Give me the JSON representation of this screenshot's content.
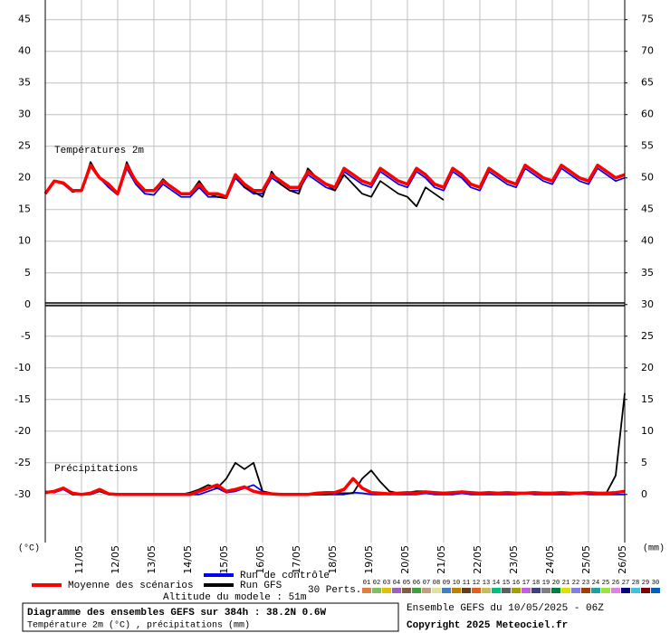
{
  "chart_data": {
    "type": "line",
    "title": "Diagramme des ensembles GEFS sur 384h : 38.2N 0.6W",
    "subtitle": "Température 2m (°C) , précipitations (mm)",
    "run_label": "Ensemble GEFS du 10/05/2025 - 06Z",
    "copyright": "Copyright 2025 Meteociel.fr",
    "altitude_label": "Altitude du modele : 51m",
    "perts_label": "30 Perts.",
    "temp_label": "Températures 2m",
    "precip_label": "Précipitations",
    "ylabel": "(°C)",
    "y2label": "(mm)",
    "grid": true,
    "xlim": [
      0,
      384
    ],
    "xticks": [
      {
        "value": 24,
        "label": "11/05"
      },
      {
        "value": 48,
        "label": "12/05"
      },
      {
        "value": 72,
        "label": "13/05"
      },
      {
        "value": 96,
        "label": "14/05"
      },
      {
        "value": 120,
        "label": "15/05"
      },
      {
        "value": 144,
        "label": "16/05"
      },
      {
        "value": 168,
        "label": "17/05"
      },
      {
        "value": 192,
        "label": "18/05"
      },
      {
        "value": 216,
        "label": "19/05"
      },
      {
        "value": 240,
        "label": "20/05"
      },
      {
        "value": 264,
        "label": "21/05"
      },
      {
        "value": 288,
        "label": "22/05"
      },
      {
        "value": 312,
        "label": "23/05"
      },
      {
        "value": 336,
        "label": "24/05"
      },
      {
        "value": 360,
        "label": "25/05"
      },
      {
        "value": 384,
        "label": "26/05"
      }
    ],
    "ylim": [
      -37.6,
      48.1
    ],
    "yticks": [
      -30,
      -25,
      -20,
      -15,
      -10,
      -5,
      0,
      5,
      10,
      15,
      20,
      25,
      30,
      35,
      40,
      45
    ],
    "y2lim": [
      -7.6,
      78.1
    ],
    "y2ticks": [
      0,
      5,
      10,
      15,
      20,
      25,
      30,
      35,
      40,
      45,
      50,
      55,
      60,
      65,
      70,
      75
    ],
    "x": [
      0,
      6,
      12,
      18,
      24,
      30,
      36,
      42,
      48,
      54,
      60,
      66,
      72,
      78,
      84,
      90,
      96,
      102,
      108,
      114,
      120,
      126,
      132,
      138,
      144,
      150,
      156,
      162,
      168,
      174,
      180,
      186,
      192,
      198,
      204,
      210,
      216,
      222,
      228,
      234,
      240,
      246,
      252,
      258,
      264,
      270,
      276,
      282,
      288,
      294,
      300,
      306,
      312,
      318,
      324,
      330,
      336,
      342,
      348,
      354,
      360,
      366,
      372,
      378,
      384
    ],
    "series": [
      {
        "name": "Run de contrôle",
        "color": "#0000ff",
        "values": [
          17.5,
          19.5,
          19,
          17.8,
          18,
          21.8,
          20,
          18.5,
          17.3,
          21.5,
          19,
          17.5,
          17.3,
          19,
          18,
          17,
          17,
          18.5,
          17,
          17,
          16.8,
          20,
          18.5,
          17.5,
          17.5,
          20,
          19,
          18,
          18,
          20.5,
          19.5,
          18.5,
          18,
          21,
          20,
          19,
          18.5,
          21,
          20,
          19,
          18.5,
          21,
          20,
          18.5,
          18,
          21,
          20,
          18.5,
          18,
          21,
          20,
          19,
          18.5,
          21.5,
          20.5,
          19.5,
          19,
          21.5,
          20.5,
          19.5,
          19,
          21.5,
          20.5,
          19.5,
          20
        ],
        "precip_values": [
          0.5,
          0.3,
          0.8,
          0,
          0,
          0,
          0.5,
          0,
          0,
          0,
          0,
          0,
          0,
          0,
          0,
          0,
          0,
          0,
          0.5,
          1,
          0.3,
          0.5,
          1,
          1.5,
          0.5,
          0,
          0,
          0,
          0,
          0,
          0,
          0,
          0,
          0,
          0.3,
          0.2,
          0,
          0,
          0,
          0,
          0,
          0,
          0.2,
          0,
          0,
          0,
          0.2,
          0,
          0,
          0,
          0,
          0,
          0,
          0.2,
          0,
          0,
          0,
          0,
          0,
          0.2,
          0,
          0,
          0,
          0,
          0
        ]
      },
      {
        "name": "Run GFS",
        "color": "#000000",
        "values": [
          17.5,
          19.5,
          19.3,
          17.8,
          18,
          22.5,
          20,
          19,
          17.5,
          22.5,
          19.5,
          18,
          18,
          19.8,
          18.5,
          17.5,
          17.5,
          19.5,
          17.5,
          17,
          16.8,
          20.5,
          18.5,
          17.8,
          17,
          21,
          19,
          18,
          17.5,
          21.5,
          20,
          19,
          18,
          20.5,
          19,
          17.5,
          17,
          19.5,
          18.5,
          17.5,
          17,
          15.5,
          18.5,
          17.5,
          16.5,
          null,
          null,
          null,
          null,
          null,
          null,
          null,
          null,
          null,
          null,
          null,
          null,
          null,
          null,
          null,
          null,
          null,
          null,
          null,
          null
        ],
        "precip_values": [
          0.3,
          0.5,
          1,
          0,
          0,
          0.2,
          0.5,
          0,
          0,
          0,
          0,
          0,
          0,
          0,
          0,
          0,
          0.3,
          0.8,
          1.5,
          1,
          2.5,
          5,
          4,
          5,
          0.5,
          0.2,
          0,
          0,
          0,
          0,
          0,
          0,
          0.2,
          0.2,
          0.2,
          2.5,
          3.8,
          2,
          0.5,
          0.2,
          0.3,
          0.5,
          0.5,
          0.3,
          0.2,
          0.3,
          0.5,
          0.2,
          0.2,
          0.3,
          0.2,
          0.2,
          0.2,
          0.2,
          0.2,
          0.2,
          0.2,
          0.2,
          0.2,
          0.2,
          0.2,
          0.2,
          0.3,
          3,
          16
        ]
      },
      {
        "name": "Moyenne des scénarios",
        "color": "#ff0000",
        "values": [
          17.5,
          19.5,
          19.2,
          18,
          18,
          22,
          20,
          19,
          17.5,
          22,
          19.5,
          18,
          18,
          19.5,
          18.5,
          17.5,
          17.5,
          19,
          17.5,
          17.5,
          17,
          20.5,
          19,
          18,
          18,
          20.5,
          19.5,
          18.5,
          18.5,
          21,
          20,
          19,
          18.5,
          21.5,
          20.5,
          19.5,
          19,
          21.5,
          20.5,
          19.5,
          19,
          21.5,
          20.5,
          19,
          18.5,
          21.5,
          20.5,
          19,
          18.5,
          21.5,
          20.5,
          19.5,
          19,
          22,
          21,
          20,
          19.5,
          22,
          21,
          20,
          19.5,
          22,
          21,
          20,
          20.5
        ],
        "precip_values": [
          0.3,
          0.5,
          1,
          0.2,
          0,
          0.2,
          0.8,
          0.1,
          0,
          0,
          0,
          0,
          0,
          0,
          0,
          0,
          0,
          0.5,
          1,
          1.5,
          0.5,
          0.8,
          1.2,
          0.5,
          0.2,
          0.1,
          0,
          0,
          0,
          0,
          0.2,
          0.3,
          0.3,
          0.8,
          2.5,
          1,
          0.3,
          0.2,
          0.1,
          0.2,
          0.3,
          0.2,
          0.4,
          0.3,
          0.2,
          0.3,
          0.4,
          0.3,
          0.2,
          0.3,
          0.2,
          0.3,
          0.2,
          0.2,
          0.3,
          0.2,
          0.2,
          0.3,
          0.2,
          0.2,
          0.3,
          0.2,
          0.2,
          0.3,
          0.5
        ]
      }
    ],
    "perturbations": [
      {
        "name": "01",
        "color": "#e08040"
      },
      {
        "name": "02",
        "color": "#80c060"
      },
      {
        "name": "03",
        "color": "#e0c000"
      },
      {
        "name": "04",
        "color": "#a060c0"
      },
      {
        "name": "05",
        "color": "#806040"
      },
      {
        "name": "06",
        "color": "#40a040"
      },
      {
        "name": "07",
        "color": "#c0a080"
      },
      {
        "name": "08",
        "color": "#e0e0a0"
      },
      {
        "name": "09",
        "color": "#4080c0"
      },
      {
        "name": "10",
        "color": "#c08000"
      },
      {
        "name": "11",
        "color": "#604020"
      },
      {
        "name": "12",
        "color": "#e06020"
      },
      {
        "name": "13",
        "color": "#c0c060"
      },
      {
        "name": "14",
        "color": "#00c080"
      },
      {
        "name": "15",
        "color": "#606060"
      },
      {
        "name": "16",
        "color": "#a0a000"
      },
      {
        "name": "17",
        "color": "#c060e0"
      },
      {
        "name": "18",
        "color": "#404080"
      },
      {
        "name": "19",
        "color": "#808080"
      },
      {
        "name": "20",
        "color": "#008040"
      },
      {
        "name": "21",
        "color": "#e0e000"
      },
      {
        "name": "22",
        "color": "#8080e0"
      },
      {
        "name": "23",
        "color": "#a04000"
      },
      {
        "name": "24",
        "color": "#20a0a0"
      },
      {
        "name": "25",
        "color": "#a0e040"
      },
      {
        "name": "26",
        "color": "#e080e0"
      },
      {
        "name": "27",
        "color": "#000080"
      },
      {
        "name": "28",
        "color": "#40c0e0"
      },
      {
        "name": "29",
        "color": "#800000"
      },
      {
        "name": "30",
        "color": "#0060c0"
      }
    ]
  }
}
